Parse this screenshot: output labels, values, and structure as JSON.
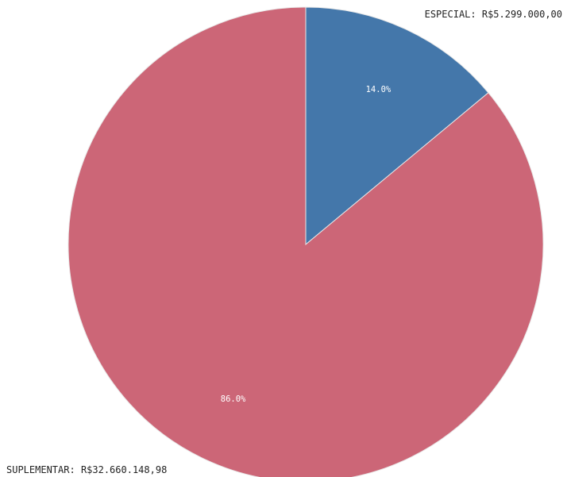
{
  "chart_data": {
    "type": "pie",
    "title": "",
    "slices": [
      {
        "category": "ESPECIAL",
        "value": 5299000.0,
        "value_label": "R$5.299.000,00",
        "percent_label": "14.0%",
        "color": "#4477aa"
      },
      {
        "category": "SUPLEMENTAR",
        "value": 32660148.98,
        "value_label": "R$32.660.148,98",
        "percent_label": "86.0%",
        "color": "#cc6677"
      }
    ],
    "start_angle": "12 o'clock",
    "direction": "clockwise",
    "legend": "none"
  }
}
